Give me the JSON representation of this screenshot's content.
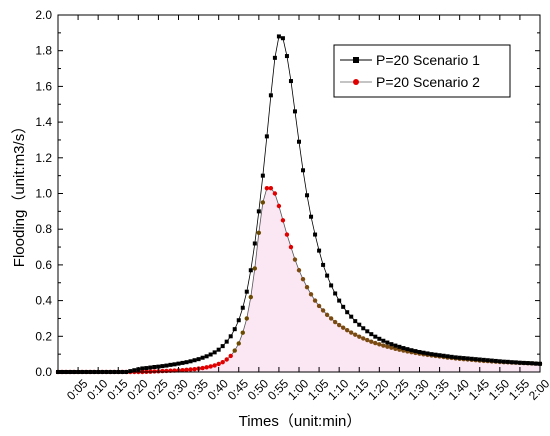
{
  "chart_data": {
    "type": "line",
    "xlabel": "Times（unit:min）",
    "ylabel": "Flooding（unit:m3/s）",
    "ylim": [
      0,
      2.0
    ],
    "y_ticks": [
      "0.0",
      "0.2",
      "0.4",
      "0.6",
      "0.8",
      "1.0",
      "1.2",
      "1.4",
      "1.6",
      "1.8",
      "2.0"
    ],
    "x_range_minutes": [
      0,
      120
    ],
    "x_ticks": [
      "0:05",
      "0:10",
      "0:15",
      "0:20",
      "0:25",
      "0:30",
      "0:35",
      "0:40",
      "0:45",
      "0:50",
      "0:55",
      "1:00",
      "1:05",
      "1:10",
      "1:15",
      "1:20",
      "1:25",
      "1:30",
      "1:35",
      "1:40",
      "1:45",
      "1:50",
      "1:55",
      "2:00"
    ],
    "x_tick_minutes": [
      5,
      10,
      15,
      20,
      25,
      30,
      35,
      40,
      45,
      50,
      55,
      60,
      65,
      70,
      75,
      80,
      85,
      90,
      95,
      100,
      105,
      110,
      115,
      120
    ],
    "grid": false,
    "legend_position": "top-right",
    "series": [
      {
        "name": "P=20 Scenario 1",
        "color": "#000000",
        "marker": "square",
        "x": [
          0,
          1,
          2,
          3,
          4,
          5,
          6,
          7,
          8,
          9,
          10,
          11,
          12,
          13,
          14,
          15,
          16,
          17,
          18,
          19,
          20,
          21,
          22,
          23,
          24,
          25,
          26,
          27,
          28,
          29,
          30,
          31,
          32,
          33,
          34,
          35,
          36,
          37,
          38,
          39,
          40,
          41,
          42,
          43,
          44,
          45,
          46,
          47,
          48,
          49,
          50,
          51,
          52,
          53,
          54,
          55,
          56,
          57,
          58,
          59,
          60,
          61,
          62,
          63,
          64,
          65,
          66,
          67,
          68,
          69,
          70,
          71,
          72,
          73,
          74,
          75,
          76,
          77,
          78,
          79,
          80,
          81,
          82,
          83,
          84,
          85,
          86,
          87,
          88,
          89,
          90,
          91,
          92,
          93,
          94,
          95,
          96,
          97,
          98,
          99,
          100,
          101,
          102,
          103,
          104,
          105,
          106,
          107,
          108,
          109,
          110,
          111,
          112,
          113,
          114,
          115,
          116,
          117,
          118,
          119,
          120
        ],
        "y": [
          0,
          0,
          0,
          0,
          0,
          0,
          0,
          0,
          0,
          0,
          0,
          0,
          0,
          0,
          0,
          0,
          0,
          0,
          0.005,
          0.01,
          0.015,
          0.02,
          0.022,
          0.025,
          0.028,
          0.03,
          0.033,
          0.036,
          0.04,
          0.043,
          0.047,
          0.051,
          0.055,
          0.06,
          0.066,
          0.072,
          0.08,
          0.088,
          0.098,
          0.11,
          0.125,
          0.145,
          0.17,
          0.2,
          0.24,
          0.29,
          0.36,
          0.45,
          0.57,
          0.72,
          0.9,
          1.1,
          1.32,
          1.55,
          1.76,
          1.88,
          1.87,
          1.77,
          1.63,
          1.46,
          1.29,
          1.13,
          0.99,
          0.87,
          0.77,
          0.68,
          0.6,
          0.54,
          0.485,
          0.44,
          0.4,
          0.365,
          0.335,
          0.31,
          0.285,
          0.265,
          0.245,
          0.228,
          0.212,
          0.198,
          0.186,
          0.175,
          0.165,
          0.156,
          0.148,
          0.141,
          0.134,
          0.128,
          0.122,
          0.117,
          0.112,
          0.108,
          0.104,
          0.1,
          0.097,
          0.094,
          0.091,
          0.088,
          0.085,
          0.082,
          0.08,
          0.078,
          0.076,
          0.074,
          0.072,
          0.07,
          0.068,
          0.066,
          0.064,
          0.062,
          0.06,
          0.058,
          0.057,
          0.055,
          0.054,
          0.052,
          0.051,
          0.05,
          0.049,
          0.047,
          0.046
        ]
      },
      {
        "name": "P=20 Scenario 2",
        "color": "#e00000",
        "marker": "circle",
        "x": [
          0,
          1,
          2,
          3,
          4,
          5,
          6,
          7,
          8,
          9,
          10,
          11,
          12,
          13,
          14,
          15,
          16,
          17,
          18,
          19,
          20,
          21,
          22,
          23,
          24,
          25,
          26,
          27,
          28,
          29,
          30,
          31,
          32,
          33,
          34,
          35,
          36,
          37,
          38,
          39,
          40,
          41,
          42,
          43,
          44,
          45,
          46,
          47,
          48,
          49,
          50,
          51,
          52,
          53,
          54,
          55,
          56,
          57,
          58,
          59,
          60,
          61,
          62,
          63,
          64,
          65,
          66,
          67,
          68,
          69,
          70,
          71,
          72,
          73,
          74,
          75,
          76,
          77,
          78,
          79,
          80,
          81,
          82,
          83,
          84,
          85,
          86,
          87,
          88,
          89,
          90,
          91,
          92,
          93,
          94,
          95,
          96,
          97,
          98,
          99,
          100,
          101,
          102,
          103,
          104,
          105,
          106,
          107,
          108,
          109,
          110,
          111,
          112,
          113,
          114,
          115,
          116,
          117,
          118,
          119,
          120
        ],
        "y": [
          0,
          0,
          0,
          0,
          0,
          0,
          0,
          0,
          0,
          0,
          0,
          0,
          0,
          0,
          0,
          0,
          0,
          0,
          0,
          0,
          0,
          0,
          0.001,
          0.002,
          0.003,
          0.004,
          0.005,
          0.006,
          0.007,
          0.008,
          0.009,
          0.01,
          0.012,
          0.014,
          0.016,
          0.019,
          0.022,
          0.026,
          0.031,
          0.037,
          0.045,
          0.055,
          0.07,
          0.09,
          0.12,
          0.16,
          0.22,
          0.3,
          0.42,
          0.58,
          0.78,
          0.95,
          1.03,
          1.03,
          1.0,
          0.93,
          0.85,
          0.77,
          0.7,
          0.63,
          0.57,
          0.52,
          0.475,
          0.435,
          0.4,
          0.37,
          0.345,
          0.32,
          0.3,
          0.28,
          0.263,
          0.248,
          0.234,
          0.221,
          0.209,
          0.198,
          0.188,
          0.179,
          0.17,
          0.162,
          0.155,
          0.148,
          0.142,
          0.136,
          0.13,
          0.125,
          0.12,
          0.115,
          0.111,
          0.107,
          0.103,
          0.099,
          0.096,
          0.093,
          0.09,
          0.087,
          0.084,
          0.081,
          0.079,
          0.076,
          0.074,
          0.072,
          0.07,
          0.068,
          0.066,
          0.064,
          0.062,
          0.061,
          0.059,
          0.058,
          0.056,
          0.055,
          0.054,
          0.053,
          0.052,
          0.051,
          0.05,
          0.049,
          0.048,
          0.047,
          0.046
        ]
      }
    ]
  }
}
